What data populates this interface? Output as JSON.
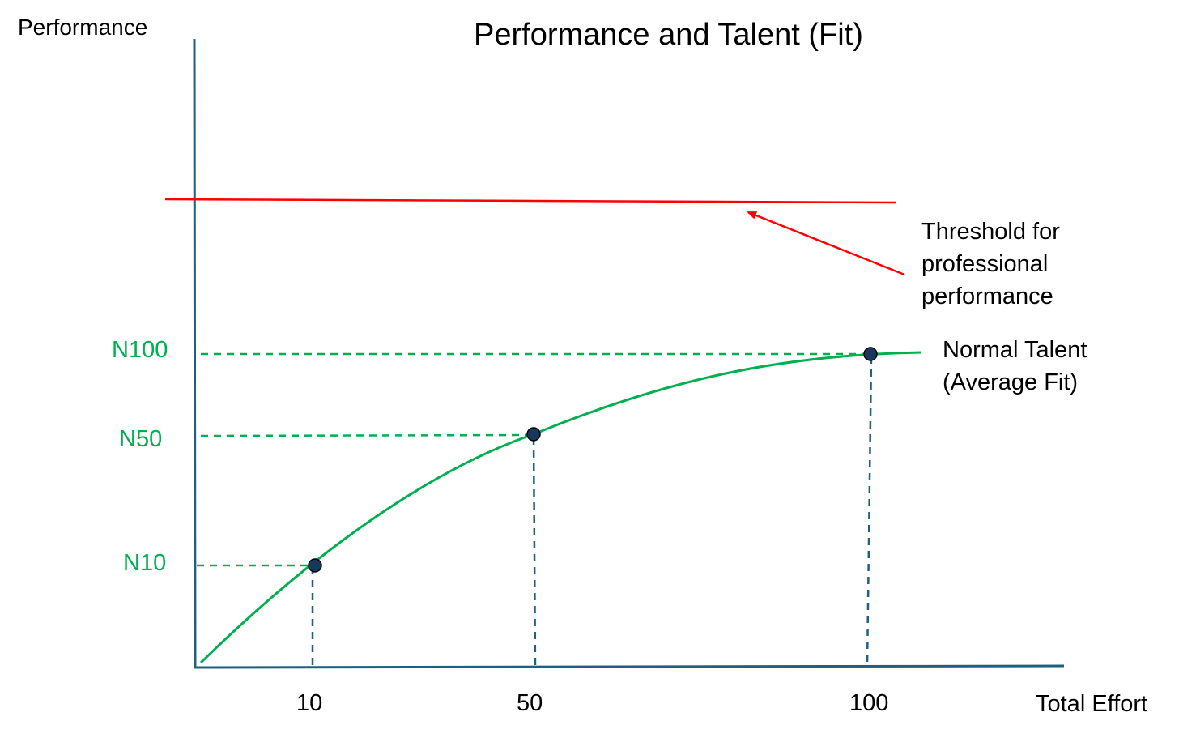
{
  "title": "Performance and Talent (Fit)",
  "y_axis_label": "Performance",
  "x_axis_label": "Total Effort",
  "x_ticks": [
    "10",
    "50",
    "100"
  ],
  "y_ticks": [
    "N10",
    "N50",
    "N100"
  ],
  "threshold": {
    "label_lines": [
      "Threshold for",
      "professional",
      "performance"
    ]
  },
  "curve": {
    "label_lines": [
      "Normal Talent",
      "(Average Fit)"
    ]
  },
  "colors": {
    "axis": "#1f5f7f",
    "curve": "#00b050",
    "threshold": "#ff0000",
    "marker": "#17375e"
  }
}
